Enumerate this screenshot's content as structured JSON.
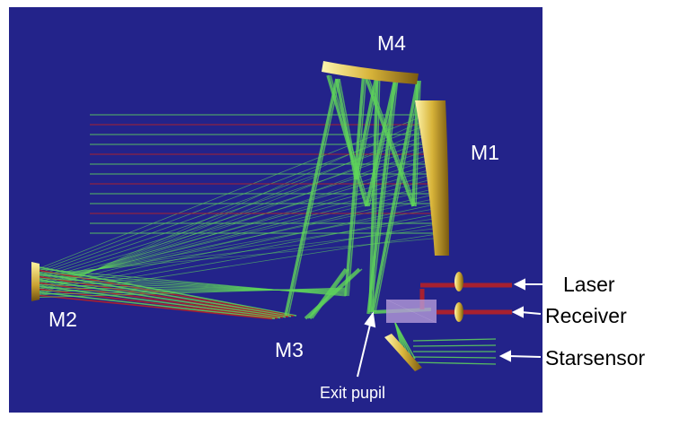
{
  "labels": {
    "m4": "M4",
    "m1": "M1",
    "m2": "M2",
    "m3": "M3",
    "exit_pupil": "Exit pupil",
    "laser": "Laser",
    "receiver": "Receiver",
    "starsensor": "Starsensor"
  }
}
